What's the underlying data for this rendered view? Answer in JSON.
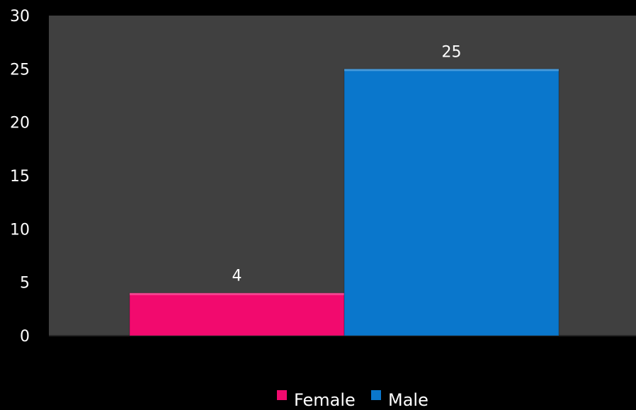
{
  "chart_data": {
    "type": "bar",
    "title": "",
    "xlabel": "",
    "ylabel": "",
    "ylim": [
      0,
      30
    ],
    "yticks": [
      0,
      5,
      10,
      15,
      20,
      25,
      30
    ],
    "grid": false,
    "legend_position": "bottom",
    "plot_background": "#404040",
    "figure_background": "#000000",
    "series": [
      {
        "name": "Female",
        "value": 4,
        "color": "#f20a6e",
        "data_label": "4"
      },
      {
        "name": "Male",
        "value": 25,
        "color": "#0a77cc",
        "data_label": "25"
      }
    ]
  }
}
